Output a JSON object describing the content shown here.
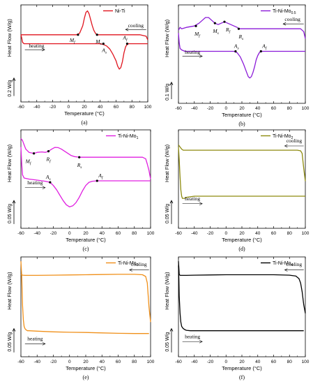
{
  "figure": {
    "panels_order": [
      "a",
      "b",
      "c",
      "d",
      "e",
      "f"
    ]
  },
  "chart_data": [
    {
      "id": "a",
      "type": "line",
      "caption": "(a)",
      "legend": "Ni-Ti",
      "color": "#e0141e",
      "xlabel": "Temperature (°C)",
      "ylabel": "Heat Flow (W/g)",
      "scale_label": "0.2 W/g",
      "xlim": [
        -60,
        100
      ],
      "xticks": [
        -60,
        -40,
        -20,
        0,
        20,
        40,
        60,
        80,
        100
      ],
      "ylim": [
        -0.9,
        0.4
      ],
      "series": [
        {
          "name": "cooling",
          "x": [
            -60,
            -40,
            -20,
            0,
            10,
            14,
            18,
            20,
            22,
            24,
            26,
            28,
            30,
            32,
            34,
            36,
            38,
            40,
            50,
            60,
            70,
            80,
            90,
            98,
            100
          ],
          "y": [
            0.0,
            0.0,
            0.0,
            0.0,
            0.0,
            0.02,
            0.12,
            0.22,
            0.3,
            0.32,
            0.28,
            0.2,
            0.12,
            0.06,
            0.02,
            0.0,
            0.0,
            0.0,
            0.0,
            0.0,
            0.0,
            0.0,
            0.0,
            -0.02,
            -0.07
          ]
        },
        {
          "name": "heating",
          "x": [
            -60,
            -59,
            -58,
            -56,
            -50,
            -40,
            -20,
            0,
            20,
            40,
            44,
            48,
            52,
            56,
            60,
            62,
            64,
            66,
            68,
            70,
            72,
            74,
            76,
            80,
            90,
            100
          ],
          "y": [
            0.0,
            -0.04,
            -0.1,
            -0.12,
            -0.12,
            -0.12,
            -0.12,
            -0.12,
            -0.12,
            -0.12,
            -0.13,
            -0.15,
            -0.19,
            -0.26,
            -0.35,
            -0.42,
            -0.46,
            -0.44,
            -0.36,
            -0.24,
            -0.16,
            -0.13,
            -0.12,
            -0.12,
            -0.12,
            -0.12
          ]
        }
      ],
      "annotations": [
        {
          "label": "M",
          "sub": "f",
          "x": 12,
          "y": 0.0,
          "dx": -12,
          "dy": 10
        },
        {
          "label": "M",
          "sub": "s",
          "x": 36,
          "y": 0.0,
          "dx": -2,
          "dy": 12
        },
        {
          "label": "A",
          "sub": "s",
          "x": 44,
          "y": -0.12,
          "dx": -2,
          "dy": 12
        },
        {
          "label": "A",
          "sub": "f",
          "x": 74,
          "y": -0.12,
          "dx": -6,
          "dy": -6
        }
      ],
      "arrows": [
        {
          "label": "cooling",
          "x1": 98,
          "x2": 72,
          "y": 0.07,
          "label_x": 75,
          "label_y": 0.1
        },
        {
          "label": "heating",
          "x1": -55,
          "x2": -30,
          "y": -0.2,
          "label_x": -50,
          "label_y": -0.17
        }
      ],
      "scale_bar": {
        "y1": -0.58,
        "y2": -0.82
      }
    },
    {
      "id": "b",
      "type": "line",
      "caption": "(b)",
      "legend": "Ti-Ni-Mo",
      "legend_sub": "0.5",
      "color": "#8b1ad8",
      "xlabel": "Temperature (°C)",
      "ylabel": "Heat Flow (W/g)",
      "scale_label": "0.1 W/g",
      "xlim": [
        -60,
        100
      ],
      "xticks": [
        -60,
        -40,
        -20,
        0,
        20,
        40,
        60,
        80,
        100
      ],
      "ylim": [
        -0.48,
        0.22
      ],
      "series": [
        {
          "name": "cooling",
          "x": [
            -60,
            -58,
            -56,
            -50,
            -40,
            -34,
            -30,
            -26,
            -22,
            -18,
            -14,
            -10,
            -6,
            -2,
            2,
            6,
            10,
            14,
            16,
            20,
            40,
            60,
            80,
            94,
            98,
            100
          ],
          "y": [
            0.04,
            0.06,
            0.05,
            0.06,
            0.07,
            0.09,
            0.11,
            0.13,
            0.13,
            0.11,
            0.09,
            0.08,
            0.09,
            0.1,
            0.09,
            0.08,
            0.07,
            0.06,
            0.05,
            0.05,
            0.05,
            0.05,
            0.05,
            0.05,
            0.03,
            -0.02
          ]
        },
        {
          "name": "heating",
          "x": [
            -60,
            -59,
            -58,
            -56,
            -52,
            -40,
            -20,
            0,
            10,
            14,
            18,
            22,
            26,
            28,
            30,
            32,
            34,
            36,
            38,
            40,
            42,
            44,
            50,
            60,
            80,
            98,
            100
          ],
          "y": [
            0.02,
            -0.05,
            -0.09,
            -0.1,
            -0.11,
            -0.11,
            -0.11,
            -0.11,
            -0.11,
            -0.12,
            -0.15,
            -0.2,
            -0.26,
            -0.29,
            -0.3,
            -0.29,
            -0.26,
            -0.22,
            -0.17,
            -0.14,
            -0.12,
            -0.11,
            -0.11,
            -0.11,
            -0.11,
            -0.11,
            -0.11
          ]
        }
      ],
      "annotations": [
        {
          "label": "M",
          "sub": "f",
          "x": -38,
          "y": 0.07,
          "dx": -2,
          "dy": 14
        },
        {
          "label": "M",
          "sub": "s",
          "x": -14,
          "y": 0.09,
          "dx": -3,
          "dy": 14
        },
        {
          "label": "R",
          "sub": "f",
          "x": -2,
          "y": 0.1,
          "dx": 2,
          "dy": 14
        },
        {
          "label": "R",
          "sub": "s",
          "x": 16,
          "y": 0.05,
          "dx": 0,
          "dy": 14
        },
        {
          "label": "A",
          "sub": "s",
          "x": 12,
          "y": -0.11,
          "dx": -2,
          "dy": -5
        },
        {
          "label": "A",
          "sub": "f",
          "x": 44,
          "y": -0.11,
          "dx": 2,
          "dy": -5
        }
      ],
      "arrows": [
        {
          "label": "cooling",
          "x1": 98,
          "x2": 72,
          "y": 0.085,
          "label_x": 74,
          "label_y": 0.105
        },
        {
          "label": "heating",
          "x1": -55,
          "x2": -30,
          "y": -0.145,
          "label_x": -52,
          "label_y": -0.128
        }
      ],
      "scale_bar": {
        "y1": -0.33,
        "y2": -0.45
      }
    },
    {
      "id": "c",
      "type": "line",
      "caption": "(c)",
      "legend": "Ti-Ni-Mo",
      "legend_sub": "1",
      "color": "#e020e0",
      "xlabel": "Temperature (°C)",
      "ylabel": "Heat Flow (W/g)",
      "scale_label": "0.05 W/g",
      "xlim": [
        -60,
        100
      ],
      "xticks": [
        -60,
        -40,
        -20,
        0,
        20,
        40,
        60,
        80,
        100
      ],
      "ylim": [
        -0.32,
        0.14
      ],
      "series": [
        {
          "name": "cooling",
          "x": [
            -60,
            -58,
            -56,
            -54,
            -50,
            -44,
            -40,
            -34,
            -30,
            -26,
            -22,
            -18,
            -14,
            -10,
            -6,
            -2,
            2,
            6,
            10,
            12,
            20,
            40,
            60,
            80,
            90,
            94,
            96,
            98,
            100
          ],
          "y": [
            0.1,
            0.09,
            0.07,
            0.05,
            0.035,
            0.03,
            0.035,
            0.037,
            0.035,
            0.04,
            0.05,
            0.058,
            0.057,
            0.05,
            0.04,
            0.03,
            0.02,
            0.015,
            0.013,
            0.012,
            0.012,
            0.012,
            0.012,
            0.012,
            0.012,
            0.005,
            -0.02,
            -0.05,
            -0.09
          ]
        },
        {
          "name": "heating",
          "x": [
            -60,
            -59,
            -58,
            -56,
            -50,
            -40,
            -30,
            -24,
            -20,
            -16,
            -12,
            -8,
            -4,
            0,
            4,
            8,
            12,
            16,
            20,
            24,
            28,
            34,
            40,
            60,
            80,
            98,
            100
          ],
          "y": [
            0.06,
            -0.02,
            -0.07,
            -0.085,
            -0.09,
            -0.095,
            -0.1,
            -0.105,
            -0.12,
            -0.14,
            -0.165,
            -0.19,
            -0.21,
            -0.22,
            -0.215,
            -0.2,
            -0.175,
            -0.145,
            -0.12,
            -0.105,
            -0.1,
            -0.098,
            -0.098,
            -0.098,
            -0.098,
            -0.098,
            -0.098
          ]
        }
      ],
      "annotations": [
        {
          "label": "M",
          "sub": "f",
          "x": -44,
          "y": 0.03,
          "dx": -12,
          "dy": 14
        },
        {
          "label": "R",
          "sub": "f",
          "x": -26,
          "y": 0.04,
          "dx": -3,
          "dy": 14
        },
        {
          "label": "R",
          "sub": "s",
          "x": 12,
          "y": 0.012,
          "dx": -3,
          "dy": 14
        },
        {
          "label": "A",
          "sub": "s",
          "x": -24,
          "y": -0.105,
          "dx": -6,
          "dy": -5
        },
        {
          "label": "A",
          "sub": "f",
          "x": 34,
          "y": -0.098,
          "dx": 2,
          "dy": -5
        }
      ],
      "arrows": [
        {
          "label": "heating",
          "x1": -55,
          "x2": -30,
          "y": -0.13,
          "label_x": -52,
          "label_y": -0.115
        }
      ],
      "scale_bar": {
        "y1": -0.19,
        "y2": -0.3
      }
    },
    {
      "id": "d",
      "type": "line",
      "caption": "(d)",
      "legend": "Ti-Ni-Mo",
      "legend_sub": "2",
      "color": "#8d8a0e",
      "xlabel": "Temperature (°C)",
      "ylabel": "Heat Flow (W/g)",
      "scale_label": "0.05 W/g",
      "xlim": [
        -60,
        100
      ],
      "xticks": [
        -60,
        -40,
        -20,
        0,
        20,
        40,
        60,
        80,
        100
      ],
      "ylim": [
        -0.32,
        0.14
      ],
      "series": [
        {
          "name": "cooling",
          "x": [
            -60,
            -58,
            -56,
            -54,
            -52,
            -50,
            -40,
            -20,
            0,
            20,
            40,
            60,
            80,
            90,
            94,
            96,
            98,
            100
          ],
          "y": [
            0.07,
            0.06,
            0.05,
            0.045,
            0.045,
            0.045,
            0.045,
            0.045,
            0.045,
            0.045,
            0.045,
            0.045,
            0.045,
            0.045,
            0.042,
            0.03,
            -0.04,
            -0.1
          ]
        },
        {
          "name": "heating",
          "x": [
            -60,
            -59,
            -58,
            -57,
            -56,
            -55,
            -54,
            -52,
            -50,
            -40,
            -20,
            0,
            20,
            40,
            60,
            80,
            98,
            100
          ],
          "y": [
            0.06,
            0.0,
            -0.08,
            -0.14,
            -0.17,
            -0.18,
            -0.18,
            -0.18,
            -0.175,
            -0.17,
            -0.17,
            -0.17,
            -0.17,
            -0.17,
            -0.17,
            -0.17,
            -0.17,
            -0.17
          ]
        }
      ],
      "annotations": [],
      "arrows": [
        {
          "label": "cooling",
          "x1": 98,
          "x2": 74,
          "y": 0.065,
          "label_x": 76,
          "label_y": 0.082
        },
        {
          "label": "heating",
          "x1": -55,
          "x2": -30,
          "y": -0.205,
          "label_x": -52,
          "label_y": -0.19
        }
      ],
      "scale_bar": {
        "y1": -0.19,
        "y2": -0.3
      }
    },
    {
      "id": "e",
      "type": "line",
      "caption": "(e)",
      "legend": "Ti-Ni-Mo",
      "legend_sub": "3",
      "color": "#f0901a",
      "xlabel": "Temperature (°C)",
      "ylabel": "Heat Flow (W/g)",
      "scale_label": "0.05 W/g",
      "xlim": [
        -60,
        100
      ],
      "xticks": [
        -60,
        -40,
        -20,
        0,
        20,
        40,
        60,
        80,
        100
      ],
      "ylim": [
        -0.32,
        0.14
      ],
      "series": [
        {
          "name": "cooling",
          "x": [
            -60,
            -59,
            -58,
            -55,
            -50,
            -40,
            -20,
            0,
            20,
            40,
            60,
            80,
            90,
            94,
            96,
            98,
            100
          ],
          "y": [
            0.06,
            0.058,
            0.056,
            0.055,
            0.055,
            0.055,
            0.056,
            0.057,
            0.058,
            0.059,
            0.06,
            0.06,
            0.058,
            0.05,
            0.02,
            -0.09,
            -0.16
          ]
        },
        {
          "name": "heating",
          "x": [
            -60,
            -59,
            -58,
            -57,
            -56,
            -55,
            -54,
            -52,
            -50,
            -40,
            -20,
            0,
            20,
            40,
            60,
            80,
            98
          ],
          "y": [
            0.12,
            0.05,
            -0.08,
            -0.15,
            -0.18,
            -0.19,
            -0.195,
            -0.2,
            -0.2,
            -0.202,
            -0.205,
            -0.207,
            -0.208,
            -0.21,
            -0.212,
            -0.213,
            -0.213
          ]
        }
      ],
      "annotations": [],
      "arrows": [
        {
          "label": "cooling",
          "x1": 98,
          "x2": 74,
          "y": 0.08,
          "label_x": 76,
          "label_y": 0.098
        },
        {
          "label": "heating",
          "x1": -55,
          "x2": -30,
          "y": -0.26,
          "label_x": -52,
          "label_y": -0.245
        }
      ],
      "scale_bar": {
        "y1": -0.19,
        "y2": -0.3
      }
    },
    {
      "id": "f",
      "type": "line",
      "caption": "(f)",
      "legend": "Ti-Ni-Mo",
      "legend_sub": "4",
      "color": "#000000",
      "xlabel": "Temperature (°C)",
      "ylabel": "Heat Flow (W/g)",
      "scale_label": "0.05 W/g",
      "xlim": [
        -60,
        100
      ],
      "xticks": [
        -60,
        -40,
        -20,
        0,
        20,
        40,
        60,
        80,
        100
      ],
      "ylim": [
        -0.32,
        0.14
      ],
      "series": [
        {
          "name": "cooling",
          "x": [
            -60,
            -59.5,
            -59,
            -58,
            -56,
            -50,
            -40,
            -20,
            0,
            20,
            40,
            60,
            80,
            88,
            92,
            94,
            96,
            98,
            100
          ],
          "y": [
            0.12,
            0.09,
            0.06,
            0.055,
            0.055,
            0.055,
            0.056,
            0.057,
            0.058,
            0.058,
            0.058,
            0.058,
            0.056,
            0.052,
            0.04,
            0.02,
            -0.02,
            -0.08,
            -0.12
          ]
        },
        {
          "name": "heating",
          "x": [
            -60,
            -59.5,
            -59,
            -58,
            -57,
            -56,
            -54,
            -52,
            -50,
            -45,
            -40,
            -20,
            0,
            20,
            40,
            60,
            80,
            98
          ],
          "y": [
            0.1,
            0.04,
            -0.04,
            -0.12,
            -0.16,
            -0.18,
            -0.19,
            -0.195,
            -0.198,
            -0.2,
            -0.2,
            -0.2,
            -0.2,
            -0.2,
            -0.2,
            -0.2,
            -0.2,
            -0.2
          ]
        }
      ],
      "annotations": [],
      "arrows": [
        {
          "label": "cooling",
          "x1": 98,
          "x2": 74,
          "y": 0.08,
          "label_x": 76,
          "label_y": 0.098
        },
        {
          "label": "heating",
          "x1": -55,
          "x2": -30,
          "y": -0.25,
          "label_x": -52,
          "label_y": -0.235
        }
      ],
      "scale_bar": {
        "y1": -0.19,
        "y2": -0.3
      }
    }
  ]
}
